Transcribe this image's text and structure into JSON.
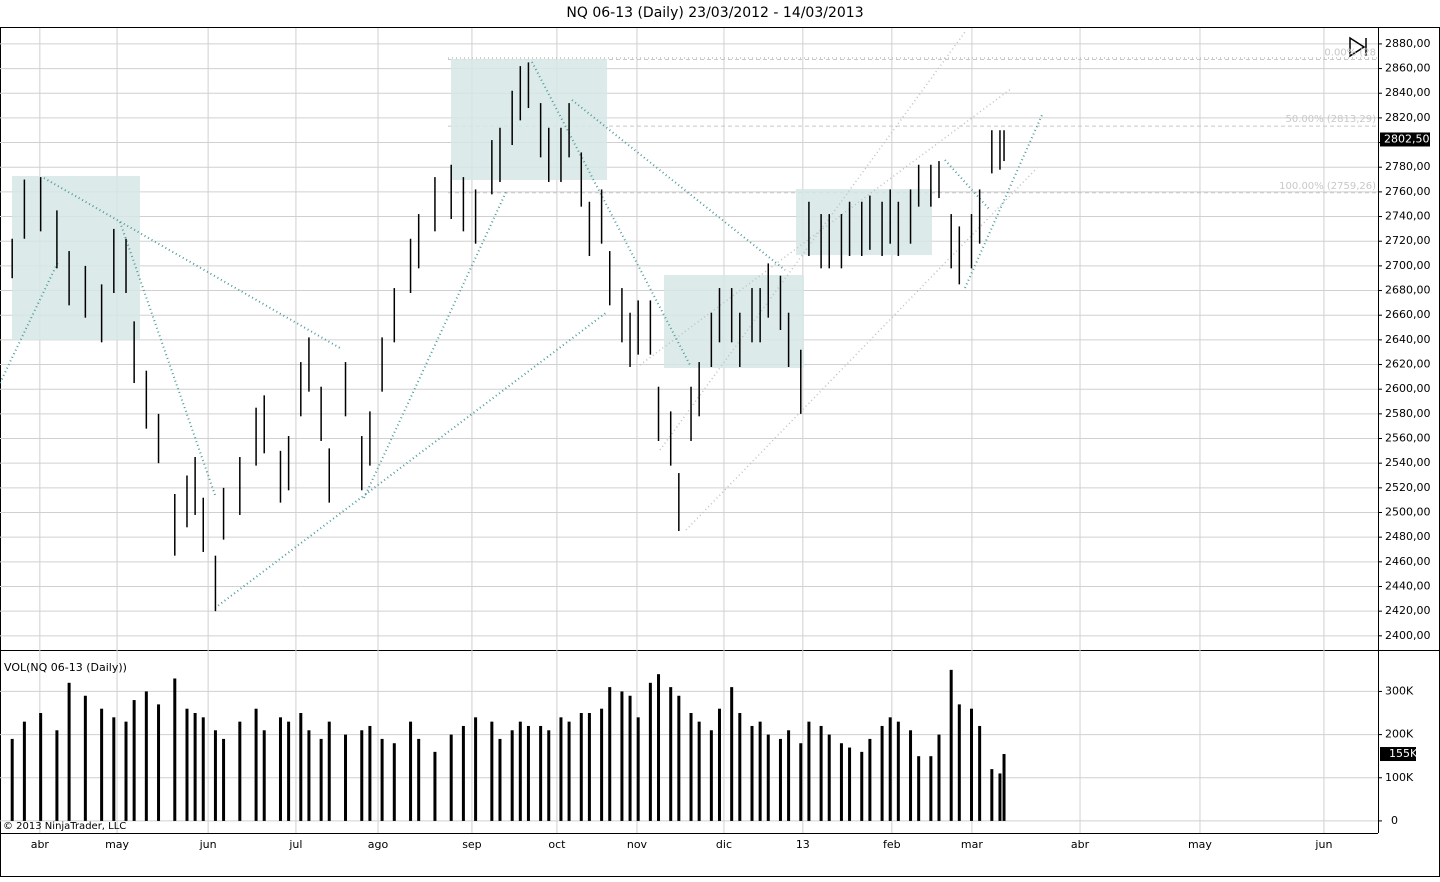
{
  "chart_data": {
    "type": "ohlc",
    "title": "NQ 06-13 (Daily)  23/03/2012 - 14/03/2013",
    "volume_title": "VOL(NQ 06-13 (Daily))",
    "copyright": "© 2013 NinjaTrader, LLC",
    "x": [
      0,
      3,
      7,
      11,
      14,
      18,
      22,
      25,
      28,
      30,
      33,
      36,
      40,
      43,
      45,
      47,
      50,
      52,
      56,
      60,
      62,
      66,
      68,
      71,
      73,
      76,
      78,
      82,
      86,
      88,
      91,
      94,
      98,
      100,
      104,
      108,
      111,
      114,
      118,
      120,
      123,
      125,
      127,
      130,
      132,
      135,
      137,
      140,
      142,
      145,
      147,
      150,
      152,
      154,
      157,
      159,
      162,
      164,
      167,
      169,
      172,
      174,
      177,
      179,
      182,
      184,
      186,
      189,
      191,
      194,
      196,
      199,
      201,
      204,
      206,
      209,
      211,
      214,
      216,
      218,
      221,
      223,
      226,
      228,
      231,
      233,
      236,
      238,
      241,
      243,
      244
    ],
    "high": [
      2722,
      2770,
      2772,
      2745,
      2712,
      2700,
      2685,
      2730,
      2722,
      2655,
      2615,
      2580,
      2515,
      2530,
      2545,
      2512,
      2465,
      2520,
      2545,
      2585,
      2595,
      2550,
      2562,
      2622,
      2642,
      2602,
      2552,
      2622,
      2562,
      2582,
      2642,
      2682,
      2722,
      2742,
      2772,
      2782,
      2772,
      2762,
      2802,
      2812,
      2842,
      2862,
      2865,
      2832,
      2812,
      2812,
      2832,
      2792,
      2752,
      2762,
      2712,
      2682,
      2662,
      2672,
      2672,
      2602,
      2582,
      2532,
      2602,
      2622,
      2662,
      2682,
      2682,
      2662,
      2682,
      2682,
      2702,
      2692,
      2662,
      2632,
      2752,
      2742,
      2742,
      2742,
      2752,
      2752,
      2757,
      2752,
      2762,
      2752,
      2762,
      2782,
      2782,
      2785,
      2742,
      2732,
      2742,
      2762,
      2810,
      2810,
      2810
    ],
    "low": [
      2690,
      2722,
      2728,
      2698,
      2668,
      2658,
      2638,
      2678,
      2678,
      2605,
      2568,
      2540,
      2465,
      2488,
      2498,
      2468,
      2420,
      2478,
      2498,
      2538,
      2548,
      2508,
      2518,
      2578,
      2598,
      2558,
      2508,
      2578,
      2518,
      2538,
      2598,
      2638,
      2678,
      2698,
      2728,
      2738,
      2728,
      2718,
      2758,
      2768,
      2798,
      2818,
      2828,
      2788,
      2768,
      2768,
      2788,
      2748,
      2708,
      2718,
      2668,
      2638,
      2618,
      2628,
      2628,
      2558,
      2538,
      2485,
      2558,
      2578,
      2618,
      2638,
      2638,
      2618,
      2638,
      2638,
      2658,
      2648,
      2618,
      2580,
      2708,
      2698,
      2698,
      2698,
      2708,
      2708,
      2713,
      2708,
      2718,
      2708,
      2718,
      2748,
      2748,
      2755,
      2698,
      2685,
      2698,
      2718,
      2775,
      2778,
      2785
    ],
    "volume": [
      190000,
      230000,
      250000,
      210000,
      320000,
      290000,
      260000,
      240000,
      230000,
      280000,
      300000,
      270000,
      330000,
      260000,
      250000,
      240000,
      210000,
      190000,
      230000,
      260000,
      210000,
      240000,
      230000,
      250000,
      210000,
      190000,
      230000,
      200000,
      210000,
      220000,
      190000,
      180000,
      230000,
      190000,
      160000,
      200000,
      220000,
      240000,
      230000,
      190000,
      210000,
      230000,
      220000,
      220000,
      210000,
      240000,
      230000,
      250000,
      250000,
      260000,
      310000,
      300000,
      290000,
      240000,
      320000,
      340000,
      310000,
      290000,
      250000,
      230000,
      210000,
      260000,
      310000,
      250000,
      220000,
      230000,
      200000,
      190000,
      210000,
      180000,
      230000,
      220000,
      200000,
      180000,
      170000,
      160000,
      190000,
      220000,
      240000,
      230000,
      210000,
      150000,
      150000,
      200000,
      350000,
      270000,
      260000,
      220000,
      120000,
      110000,
      155000
    ],
    "color": "#000000",
    "xlim": [
      -3,
      336
    ],
    "xticks": [
      {
        "value": 6.8,
        "label": "abr"
      },
      {
        "value": 25.8,
        "label": "may"
      },
      {
        "value": 48.2,
        "label": "jun"
      },
      {
        "value": 69.8,
        "label": "jul"
      },
      {
        "value": 90,
        "label": "ago"
      },
      {
        "value": 113.1,
        "label": "sep"
      },
      {
        "value": 134,
        "label": "oct"
      },
      {
        "value": 153.7,
        "label": "nov"
      },
      {
        "value": 175.1,
        "label": "dic"
      },
      {
        "value": 194.5,
        "label": "13"
      },
      {
        "value": 216.4,
        "label": "feb"
      },
      {
        "value": 236.1,
        "label": "mar"
      },
      {
        "value": 262.7,
        "label": "abr"
      },
      {
        "value": 292.2,
        "label": "may"
      },
      {
        "value": 322.7,
        "label": "jun"
      }
    ],
    "ylim": [
      2388.5,
      2892.9
    ],
    "yticks": [
      {
        "value": 2400,
        "label": "2400,00"
      },
      {
        "value": 2420,
        "label": "2420,00"
      },
      {
        "value": 2440,
        "label": "2440,00"
      },
      {
        "value": 2460,
        "label": "2460,00"
      },
      {
        "value": 2480,
        "label": "2480,00"
      },
      {
        "value": 2500,
        "label": "2500,00"
      },
      {
        "value": 2520,
        "label": "2520,00"
      },
      {
        "value": 2540,
        "label": "2540,00"
      },
      {
        "value": 2560,
        "label": "2560,00"
      },
      {
        "value": 2580,
        "label": "2580,00"
      },
      {
        "value": 2600,
        "label": "2600,00"
      },
      {
        "value": 2620,
        "label": "2620,00"
      },
      {
        "value": 2640,
        "label": "2640,00"
      },
      {
        "value": 2660,
        "label": "2660,00"
      },
      {
        "value": 2680,
        "label": "2680,00"
      },
      {
        "value": 2700,
        "label": "2700,00"
      },
      {
        "value": 2720,
        "label": "2720,00"
      },
      {
        "value": 2740,
        "label": "2740,00"
      },
      {
        "value": 2760,
        "label": "2760,00"
      },
      {
        "value": 2780,
        "label": "2780,00"
      },
      {
        "value": 2800,
        "label": "2800,00"
      },
      {
        "value": 2820,
        "label": "2820,00"
      },
      {
        "value": 2840,
        "label": "2840,00"
      },
      {
        "value": 2860,
        "label": "2860,00"
      },
      {
        "value": 2880,
        "label": "2880,00"
      }
    ],
    "y2lim": [
      -28000,
      396000
    ],
    "y2ticks": [
      0,
      {
        "value": 100000,
        "label": "100K"
      },
      {
        "value": 200000,
        "label": "200K"
      },
      {
        "value": 300000,
        "label": "300K"
      }
    ],
    "grid": true,
    "last_price": {
      "value": 2802.5,
      "label": "2802,50"
    },
    "last_volume": {
      "value": 155000,
      "label": "155K"
    },
    "fib_levels": [
      {
        "value": 2867.32,
        "label": "0.00% (28"
      },
      {
        "value": 2813.29,
        "label": "50.00% (2813,29)"
      },
      {
        "value": 2759.26,
        "label": "100.00% (2759,26)"
      }
    ]
  }
}
